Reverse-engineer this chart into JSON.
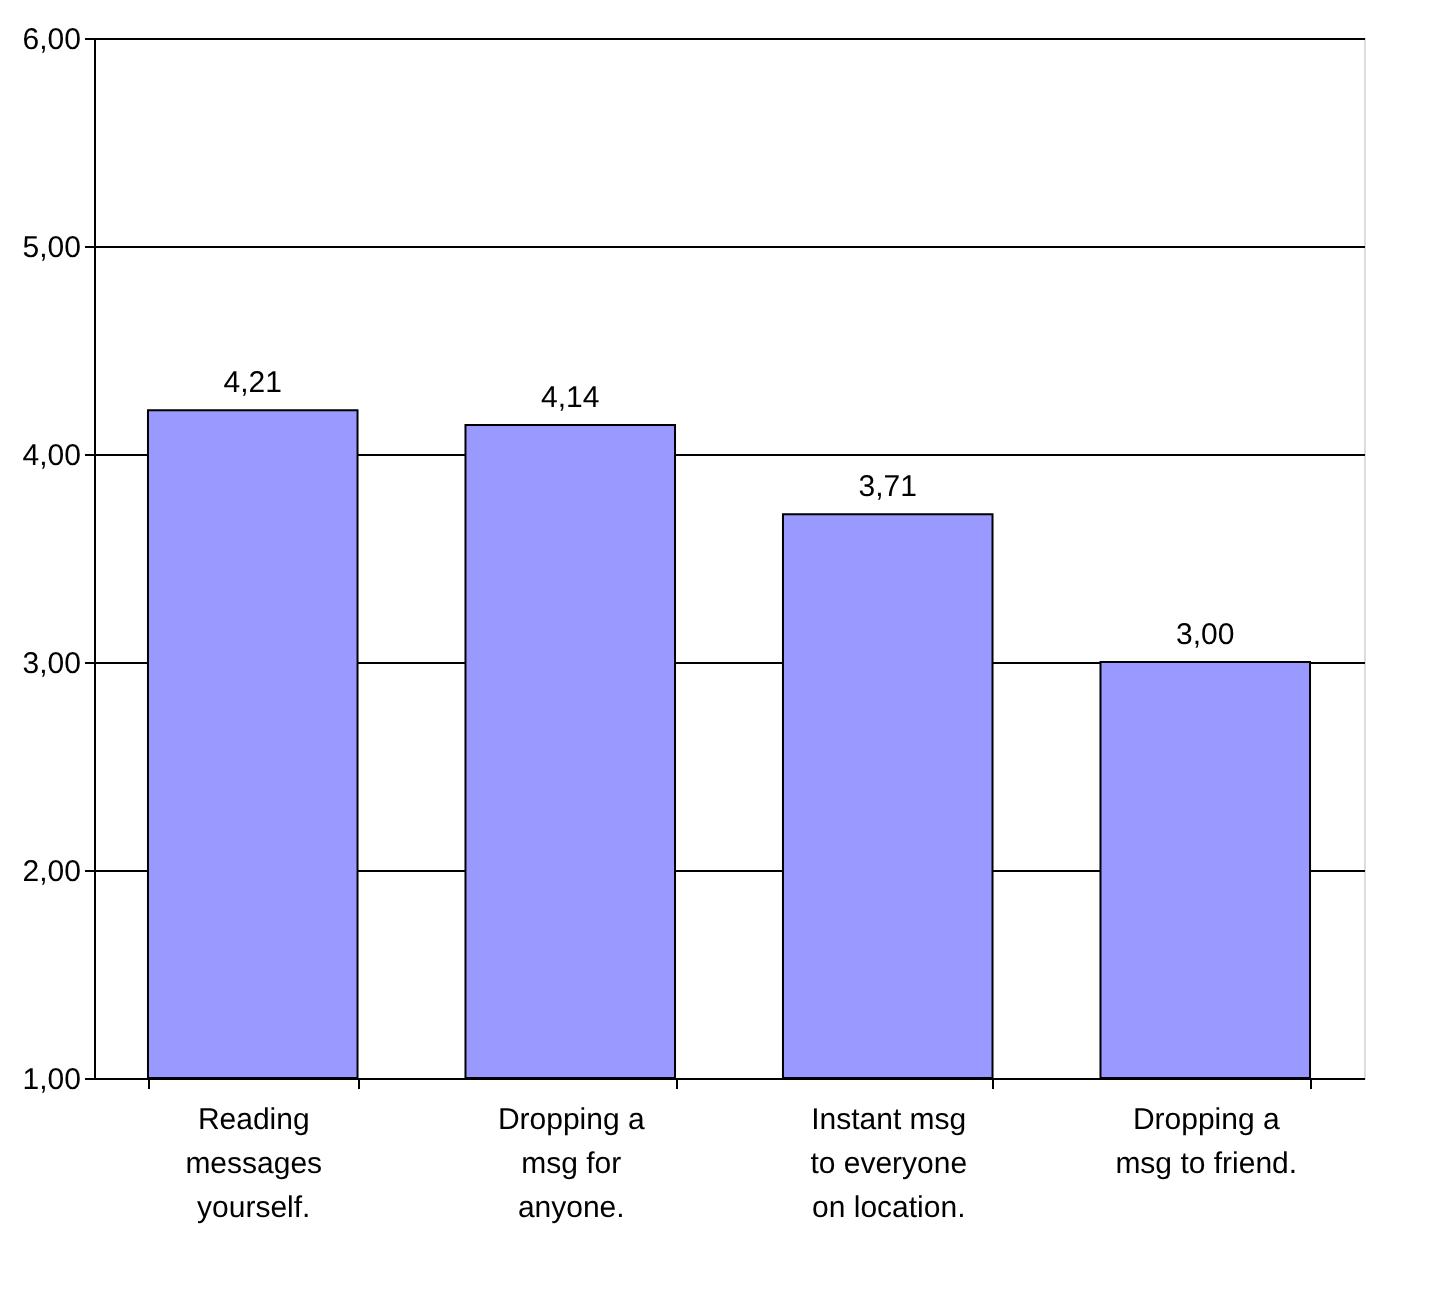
{
  "chart_data": {
    "type": "bar",
    "categories": [
      "Reading\nmessages\nyourself.",
      "Dropping a\nmsg for\nanyone.",
      "Instant msg\nto everyone\non location.",
      "Dropping a\nmsg to friend."
    ],
    "values": [
      4.21,
      4.14,
      3.71,
      3.0
    ],
    "value_labels": [
      "4,21",
      "4,14",
      "3,71",
      "3,00"
    ],
    "color": "#9999ff",
    "ylim": [
      1,
      6
    ],
    "yticks": [
      {
        "value": 1,
        "label": "1,00"
      },
      {
        "value": 2,
        "label": "2,00"
      },
      {
        "value": 3,
        "label": "3,00"
      },
      {
        "value": 4,
        "label": "4,00"
      },
      {
        "value": 5,
        "label": "5,00"
      },
      {
        "value": 6,
        "label": "6,00"
      }
    ],
    "grid": "y"
  }
}
